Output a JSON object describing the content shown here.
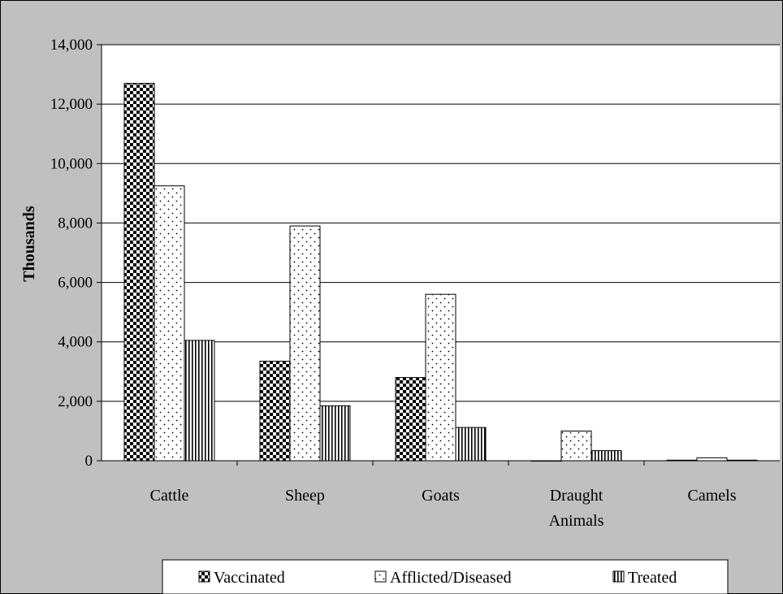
{
  "chart_data": {
    "type": "bar",
    "title": "",
    "xlabel": "",
    "ylabel": "Thousands",
    "ylim": [
      0,
      14000
    ],
    "yticks": [
      "0",
      "2,000",
      "4,000",
      "6,000",
      "8,000",
      "10,000",
      "12,000",
      "14,000"
    ],
    "ytick_values": [
      0,
      2000,
      4000,
      6000,
      8000,
      10000,
      12000,
      14000
    ],
    "grid": true,
    "legend_position": "bottom",
    "categories": [
      [
        "Cattle"
      ],
      [
        "Sheep"
      ],
      [
        "Goats"
      ],
      [
        "Draught",
        "Animals"
      ],
      [
        "Camels"
      ]
    ],
    "series": [
      {
        "name": "Vaccinated",
        "pattern": "checker",
        "values": [
          12700,
          3350,
          2800,
          0,
          20
        ]
      },
      {
        "name": "Afflicted/Diseased",
        "pattern": "dots",
        "values": [
          9250,
          7900,
          5600,
          1000,
          100
        ]
      },
      {
        "name": "Treated",
        "pattern": "vlines",
        "values": [
          4050,
          1850,
          1120,
          340,
          20
        ]
      }
    ],
    "colors": {
      "background": "#c0c0c0",
      "plot": "#ffffff",
      "bar_outline": "#000000"
    }
  }
}
